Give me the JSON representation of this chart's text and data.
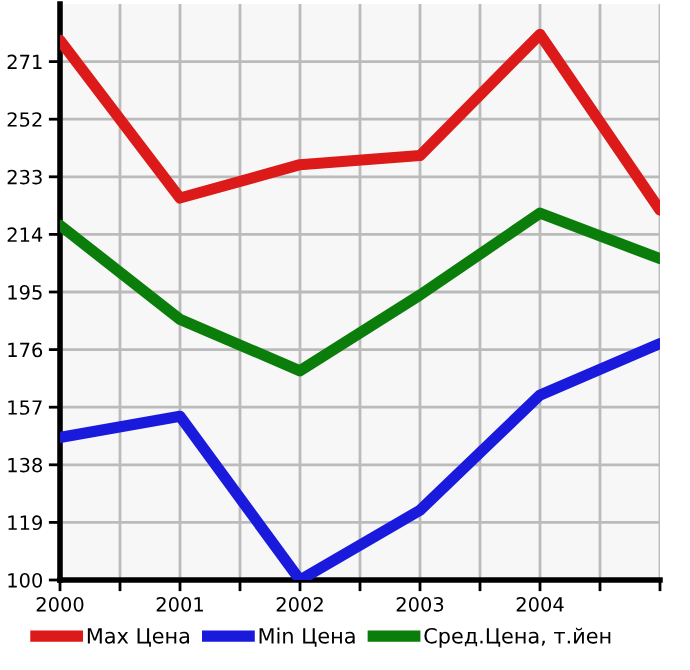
{
  "chart_data": {
    "type": "line",
    "x": [
      2000,
      2001,
      2002,
      2003,
      2004,
      2005
    ],
    "series": [
      {
        "name": "Max Цена",
        "color": "#dd1a1a",
        "values": [
          278,
          226,
          237,
          240,
          280,
          222
        ]
      },
      {
        "name": "Min Цена",
        "color": "#1a1add",
        "values": [
          147,
          154,
          100,
          123,
          161,
          178
        ]
      },
      {
        "name": "Сред.Цена, т.йен",
        "color": "#0a7d0a",
        "values": [
          217,
          186,
          169,
          194,
          221,
          206
        ]
      }
    ],
    "xlim": [
      2000,
      2005
    ],
    "ylim": [
      100,
      290
    ],
    "xticks": [
      2000,
      {
        "value": 2000.5,
        "label": null
      },
      2001,
      {
        "value": 2001.5,
        "label": null
      },
      2002,
      {
        "value": 2002.5,
        "label": null
      },
      2003,
      {
        "value": 2003.5,
        "label": null
      },
      2004,
      {
        "value": 2004.5,
        "label": null
      },
      {
        "value": 2005,
        "label": null
      }
    ],
    "yticks": [
      100,
      119,
      138,
      157,
      176,
      195,
      214,
      233,
      252,
      271
    ],
    "grid": true,
    "legend": "bottom",
    "marker": "none",
    "line_style": "solid"
  }
}
